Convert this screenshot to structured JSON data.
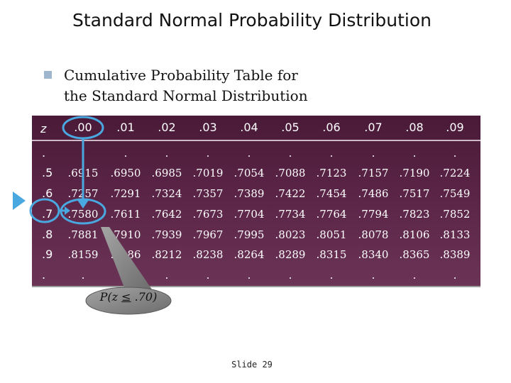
{
  "slide": {
    "title": "Standard Normal Probability Distribution",
    "bullet_line1": "Cumulative Probability Table for",
    "bullet_line2": "the Standard Normal Distribution",
    "slide_number": "Slide 29"
  },
  "table": {
    "z_header": "z",
    "col_headers": [
      ".00",
      ".01",
      ".02",
      ".03",
      ".04",
      ".05",
      ".06",
      ".07",
      ".08",
      ".09"
    ],
    "rows": [
      {
        "z": ".",
        "values": [
          ".",
          ".",
          ".",
          ".",
          ".",
          ".",
          ".",
          ".",
          ".",
          "."
        ]
      },
      {
        "z": ".5",
        "values": [
          ".6915",
          ".6950",
          ".6985",
          ".7019",
          ".7054",
          ".7088",
          ".7123",
          ".7157",
          ".7190",
          ".7224"
        ]
      },
      {
        "z": ".6",
        "values": [
          ".7257",
          ".7291",
          ".7324",
          ".7357",
          ".7389",
          ".7422",
          ".7454",
          ".7486",
          ".7517",
          ".7549"
        ]
      },
      {
        "z": ".7",
        "values": [
          ".7580",
          ".7611",
          ".7642",
          ".7673",
          ".7704",
          ".7734",
          ".7764",
          ".7794",
          ".7823",
          ".7852"
        ]
      },
      {
        "z": ".8",
        "values": [
          ".7881",
          ".7910",
          ".7939",
          ".7967",
          ".7995",
          ".8023",
          ".8051",
          ".8078",
          ".8106",
          ".8133"
        ]
      },
      {
        "z": ".9",
        "values": [
          ".8159",
          ".8186",
          ".8212",
          ".8238",
          ".8264",
          ".8289",
          ".8315",
          ".8340",
          ".8365",
          ".8389"
        ]
      },
      {
        "z": ".",
        "values": [
          ".",
          ".",
          ".",
          ".",
          ".",
          ".",
          ".",
          ".",
          ".",
          "."
        ]
      }
    ]
  },
  "callout": {
    "text_prefix": "P(z ",
    "symbol": "≤",
    "text_suffix": " .70)"
  },
  "colors": {
    "table_bg": "#5a2446",
    "highlight": "#4aa8e0",
    "callout_fill": "#8a8a8a"
  }
}
